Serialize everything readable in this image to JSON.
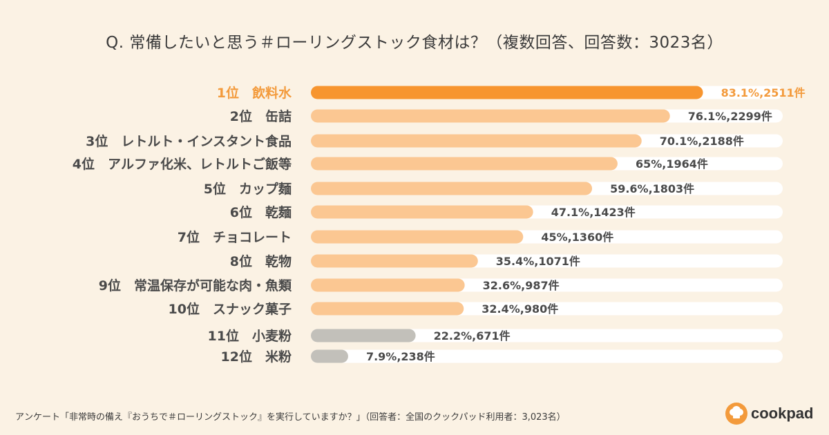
{
  "title": "Q. 常備したいと思う＃ローリングストック食材は？（複数回答、回答数：3023名）",
  "footer": "アンケート「非常時の備え『おうちで＃ローリングストック』を実行していますか？」（回答者：全国のクックパッド利用者：3,023名）",
  "brand": {
    "name": "cookpad"
  },
  "colors": {
    "background": "#fbf2e4",
    "track": "#ffffff",
    "top": "#f7952f",
    "orange": "#fbc792",
    "gray": "#c2c0ba",
    "label": "#4a4a4a",
    "top_label": "#f39a3b",
    "brand": "#f39a3b"
  },
  "chart_data": {
    "type": "bar",
    "orientation": "horizontal",
    "title": "Q. 常備したいと思う＃ローリングストック食材は？（複数回答、回答数：3023名）",
    "xlim": [
      0,
      100
    ],
    "categories": [
      "1位　飲料水",
      "2位　缶詰",
      "3位　レトルト・インスタント食品",
      "4位　アルファ化米、レトルトご飯等",
      "5位　カップ麺",
      "6位　乾麺",
      "7位　チョコレート",
      "8位　乾物",
      "9位　常温保存が可能な肉・魚類",
      "10位　スナック菓子",
      "11位　小麦粉",
      "12位　米粉"
    ],
    "values": [
      83.1,
      76.1,
      70.1,
      65,
      59.6,
      47.1,
      45,
      35.4,
      32.6,
      32.4,
      22.2,
      7.9
    ],
    "counts": [
      2511,
      2299,
      2188,
      1964,
      1803,
      1423,
      1360,
      1071,
      987,
      980,
      671,
      238
    ],
    "value_labels": [
      "83.1%,2511件",
      "76.1%,2299件",
      "70.1%,2188件",
      "65%,1964件",
      "59.6%,1803件",
      "47.1%,1423件",
      "45%,1360件",
      "35.4%,1071件",
      "32.6%,987件",
      "32.4%,980件",
      "22.2%,671件",
      "7.9%,238件"
    ],
    "bar_color_groups": [
      "top",
      "orange",
      "orange",
      "orange",
      "orange",
      "orange",
      "orange",
      "orange",
      "orange",
      "orange",
      "gray",
      "gray"
    ]
  }
}
